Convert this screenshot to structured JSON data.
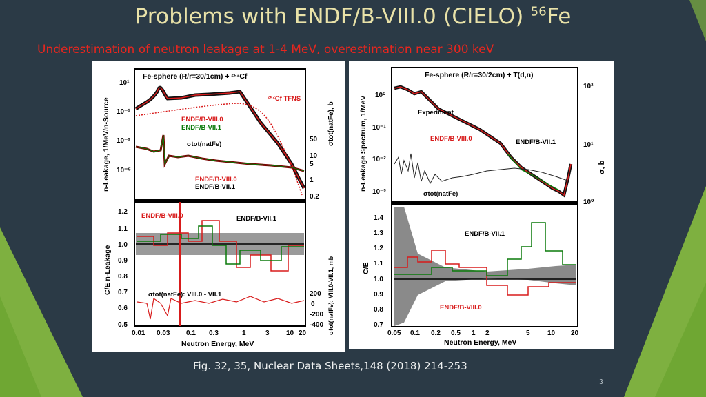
{
  "slide": {
    "title_main": "Problems with ENDF/B-VIII.0 (CIELO) ",
    "title_isotope_mass": "56",
    "title_element": "Fe",
    "subtitle": "Underestimation of neutron leakage at 1-4 MeV, overestimation  near 300 keV",
    "caption": "Fig. 32, 35, Nuclear Data Sheets,148 (2018) 214-253",
    "slide_number": "3",
    "colors": {
      "background": "#2b3a46",
      "accent_green": "#8dc63f",
      "title": "#e9e2a8",
      "subtitle": "#e8261e"
    }
  },
  "left_figure": {
    "top_panel": {
      "label": "Fe-sphere (R/r=30/1cm) + ²⁵²Cf",
      "ylabel": "n-Leakage, 1/MeV/n-Source",
      "right_ylabel": "σtot(natFe), b",
      "yticks": [
        "10¹",
        "10⁻¹",
        "10⁻³",
        "10⁻⁵"
      ],
      "right_yticks": [
        "50",
        "10",
        "5",
        "1",
        "0.2"
      ],
      "legend_tfns": "²⁵²Cf TFNS",
      "legend_viii_top": "ENDF/B-VIII.0",
      "legend_vii_top": "ENDF/B-VII.1",
      "legend_sigma": "σtot(natFe)",
      "legend_viii_bottom": "ENDF/B-VIII.0",
      "legend_vii_bottom": "ENDF/B-VII.1"
    },
    "bottom_panel": {
      "ylabel": "C/E n-Leakage",
      "right_ylabel": "σtot(natFe): VIII.0-VII.1, mb",
      "yticks": [
        "1.2",
        "1.1",
        "1.0",
        "0.9",
        "0.8",
        "0.7",
        "0.6",
        "0.5"
      ],
      "right_yticks": [
        "200",
        "0",
        "-200",
        "-400"
      ],
      "legend_viii": "ENDF/B-VIII.0",
      "legend_vii": "ENDF/B-VII.1",
      "diff_label": "σtot(natFe): VIII.0 - VII.1",
      "xticks": [
        "0.01",
        "0.03",
        "0.1",
        "0.3",
        "1",
        "3",
        "10",
        "20"
      ],
      "xlabel": "Neutron Energy, MeV"
    }
  },
  "right_figure": {
    "top_panel": {
      "label": "Fe-sphere (R/r=30/2cm) + T(d,n)",
      "ylabel": "n-Leakage Spectrum, 1/MeV",
      "right_ylabel": "σ, b",
      "yticks": [
        "10⁰",
        "10⁻¹",
        "10⁻²",
        "10⁻³"
      ],
      "right_yticks": [
        "10²",
        "10¹",
        "10⁰"
      ],
      "legend_experiment": "Experiment",
      "legend_viii": "ENDF/B-VIII.0",
      "legend_vii": "ENDF/B-VII.1",
      "legend_sigma": "σtot(natFe)"
    },
    "bottom_panel": {
      "ylabel": "C/E",
      "yticks": [
        "1.4",
        "1.3",
        "1.2",
        "1.1",
        "1.0",
        "0.9",
        "0.8",
        "0.7"
      ],
      "legend_vii": "ENDF/B-VII.1",
      "legend_viii": "ENDF/B-VIII.0",
      "xticks": [
        "0.05",
        "0.1",
        "0.2",
        "0.5",
        "1",
        "2",
        "5",
        "10",
        "20"
      ],
      "xlabel": "Neutron Energy, MeV"
    }
  }
}
